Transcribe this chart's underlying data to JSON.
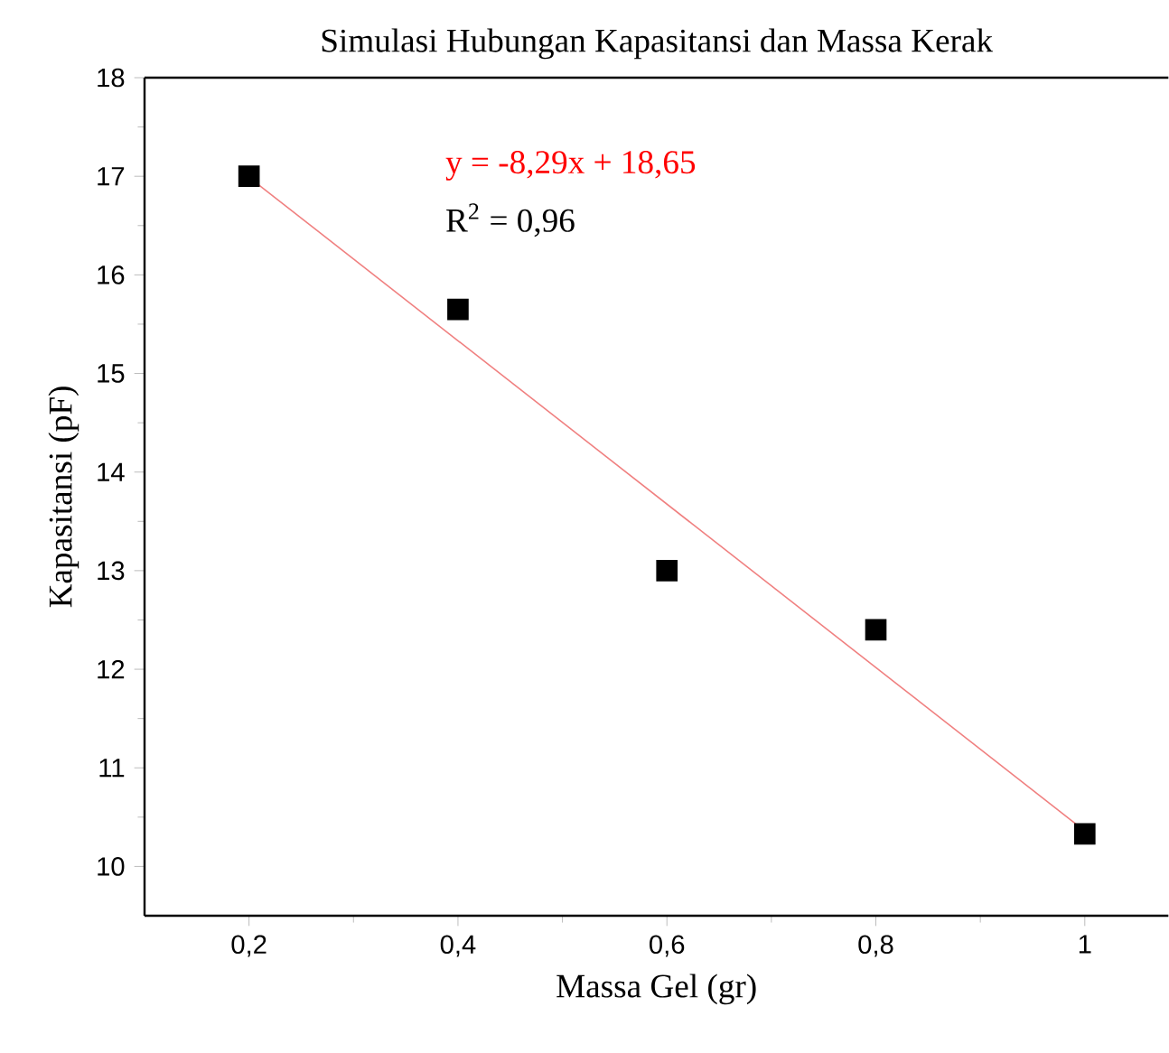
{
  "chart_data": {
    "type": "scatter",
    "title": "Simulasi Hubungan Kapasitansi dan Massa Kerak",
    "xlabel": "Massa Gel (gr)",
    "ylabel": "Kapasitansi (pF)",
    "x": [
      0.2,
      0.4,
      0.6,
      0.8,
      1.0
    ],
    "series": [
      {
        "color": "#000000",
        "marker": "square",
        "values": [
          17.0,
          15.65,
          13.0,
          12.4,
          10.33
        ]
      },
      {
        "type": "line",
        "marker": "none",
        "color": "#f08080",
        "x": [
          0.2,
          1.0
        ],
        "values": [
          16.99,
          10.36
        ]
      }
    ],
    "xlim": [
      0.1,
      1.08
    ],
    "ylim": [
      9.5,
      18
    ],
    "xticks": [
      {
        "value": 0.2,
        "label": "0,2"
      },
      {
        "value": 0.4,
        "label": "0,4"
      },
      {
        "value": 0.6,
        "label": "0,6"
      },
      {
        "value": 0.8,
        "label": "0,8"
      },
      1
    ],
    "yticks": [
      10,
      11,
      12,
      13,
      14,
      15,
      16,
      17,
      18
    ],
    "annotations": [
      "y = -8,29x + 18,65",
      "R$^{2}$ = 0,96"
    ],
    "grid": false
  }
}
